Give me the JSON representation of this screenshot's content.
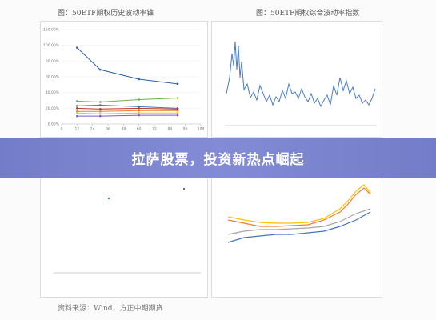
{
  "header_left": "图：50ETF期权历史波动率锥",
  "header_right": "图：50ETF期权综合波动率指数",
  "banner": "拉萨股票，投资新热点崛起",
  "source": "资料来源：Wind，方正中期期货",
  "chart_data": {
    "type": "line",
    "x": [
      12,
      30,
      60,
      90
    ],
    "series": [
      {
        "color": "#2e5fa8",
        "values": [
          97,
          69,
          57,
          51
        ]
      },
      {
        "color": "#70ad47",
        "values": [
          29,
          28,
          31,
          33
        ]
      },
      {
        "color": "#4472c4",
        "values": [
          23,
          24,
          22,
          20
        ]
      },
      {
        "color": "#c0392b",
        "values": [
          20,
          19,
          20,
          19
        ]
      },
      {
        "color": "#ed7d31",
        "values": [
          16,
          16,
          17,
          17
        ]
      },
      {
        "color": "#ffc000",
        "values": [
          14,
          13,
          14,
          14
        ]
      },
      {
        "color": "#7e57c2",
        "values": [
          10,
          10,
          11,
          11
        ]
      }
    ],
    "xlim": [
      0,
      108
    ],
    "xticks": [
      0,
      12,
      24,
      36,
      48,
      60,
      72,
      84,
      96,
      108
    ],
    "ylim": [
      0,
      120
    ],
    "yticks": [
      {
        "value": 0,
        "label": "0.00%"
      },
      {
        "value": 20,
        "label": "20.00%"
      },
      {
        "value": 40,
        "label": "40.00%"
      },
      {
        "value": 60,
        "label": "60.00%"
      },
      {
        "value": 80,
        "label": "80.00%"
      },
      {
        "value": 100,
        "label": "100.00%"
      },
      {
        "value": 120,
        "label": "120.00%"
      }
    ]
  }
}
